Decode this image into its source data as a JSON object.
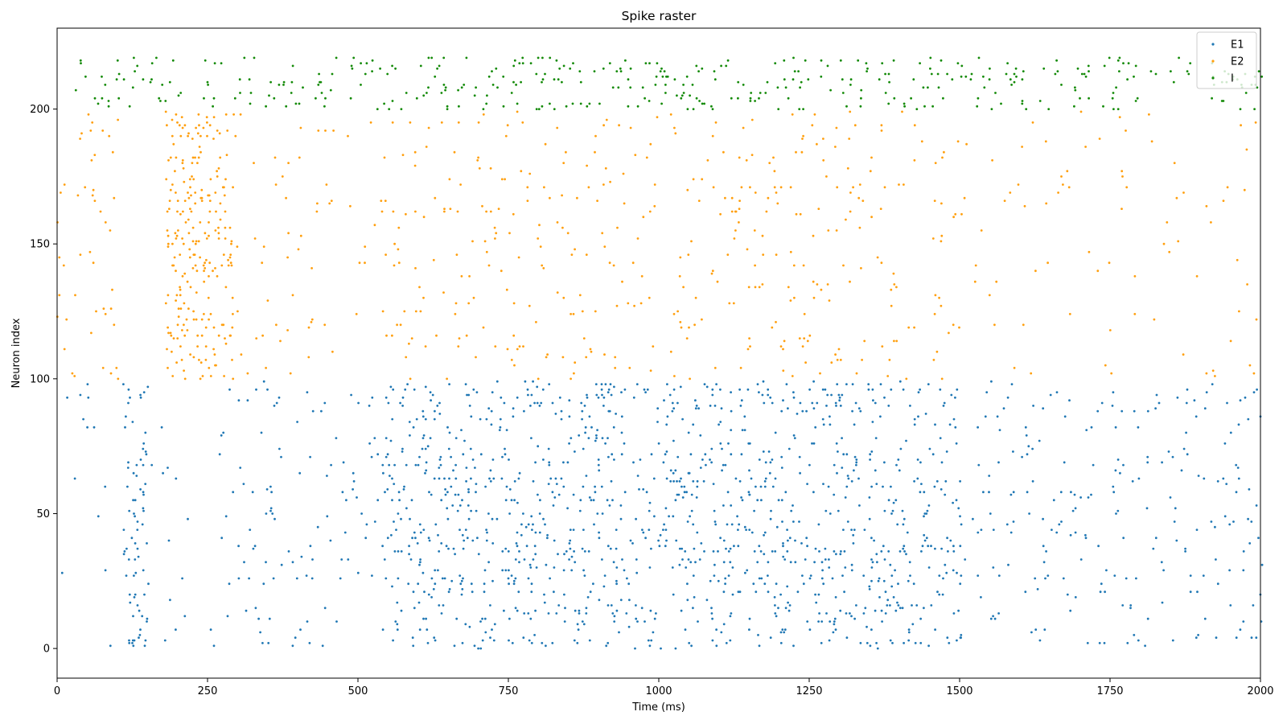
{
  "chart_data": {
    "type": "scatter",
    "title": "Spike raster",
    "xlabel": "Time (ms)",
    "ylabel": "Neuron index",
    "xlim": [
      0,
      2000
    ],
    "ylim": [
      -11,
      230
    ],
    "x_ticks": [
      0,
      250,
      500,
      750,
      1000,
      1250,
      1500,
      1750,
      2000
    ],
    "y_ticks": [
      0,
      50,
      100,
      150,
      200
    ],
    "grid": false,
    "legend_position": "top-right",
    "series": [
      {
        "name": "E1",
        "color": "#1f77b4",
        "neuron_range": [
          0,
          99
        ],
        "activity_periods": [
          {
            "t_start": 0,
            "t_end": 100,
            "rate": "low"
          },
          {
            "t_start": 110,
            "t_end": 150,
            "rate": "burst"
          },
          {
            "t_start": 150,
            "t_end": 290,
            "rate": "low"
          },
          {
            "t_start": 290,
            "t_end": 540,
            "rate": "medium"
          },
          {
            "t_start": 540,
            "t_end": 1150,
            "rate": "high"
          },
          {
            "t_start": 1150,
            "t_end": 1500,
            "rate": "high"
          },
          {
            "t_start": 1500,
            "t_end": 2000,
            "rate": "medium"
          }
        ]
      },
      {
        "name": "E2",
        "color": "#ff9f0e",
        "neuron_range": [
          100,
          199
        ],
        "activity_periods": [
          {
            "t_start": 0,
            "t_end": 100,
            "rate": "medium"
          },
          {
            "t_start": 180,
            "t_end": 290,
            "rate": "burst"
          },
          {
            "t_start": 290,
            "t_end": 540,
            "rate": "low"
          },
          {
            "t_start": 540,
            "t_end": 1500,
            "rate": "medium"
          },
          {
            "t_start": 1500,
            "t_end": 2000,
            "rate": "low"
          }
        ]
      },
      {
        "name": "I",
        "color": "#138a07",
        "neuron_range": [
          200,
          219
        ],
        "activity_periods": [
          {
            "t_start": 30,
            "t_end": 540,
            "rate": "bursty"
          },
          {
            "t_start": 540,
            "t_end": 1500,
            "rate": "high"
          },
          {
            "t_start": 1500,
            "t_end": 2000,
            "rate": "bursty"
          }
        ]
      }
    ]
  }
}
